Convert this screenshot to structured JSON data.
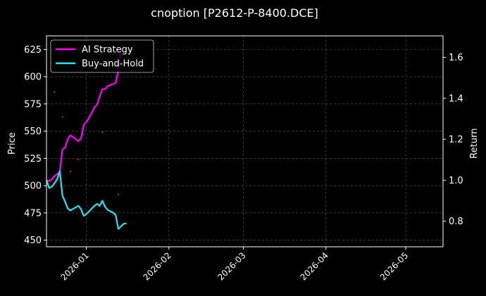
{
  "chart_data": {
    "type": "line",
    "title": "cnoption [P2612-P-8400.DCE]",
    "xlabel": "",
    "ylabel": "Price",
    "y2label": "Return",
    "grid": true,
    "legend_position": "top-left",
    "x_range": [
      "2025-12-17",
      "2026-05-15"
    ],
    "ylim": [
      443.9,
      637.5
    ],
    "y2lim": [
      0.675,
      1.705
    ],
    "x_ticks": [
      "2026-01",
      "2026-02",
      "2026-03",
      "2026-04",
      "2026-05"
    ],
    "y_ticks": [
      450,
      475,
      500,
      525,
      550,
      575,
      600,
      625
    ],
    "y2_ticks": [
      0.8,
      1.0,
      1.2,
      1.4,
      1.6
    ],
    "series": [
      {
        "name": "AI Strategy",
        "axis": "right",
        "color": "#ff00ff",
        "points": [
          [
            "2025-12-17",
            1.0
          ],
          [
            "2025-12-18",
            0.995
          ],
          [
            "2025-12-19",
            1.005
          ],
          [
            "2025-12-20",
            1.02
          ],
          [
            "2025-12-22",
            1.04
          ],
          [
            "2025-12-23",
            1.15
          ],
          [
            "2025-12-24",
            1.16
          ],
          [
            "2025-12-25",
            1.2
          ],
          [
            "2025-12-26",
            1.22
          ],
          [
            "2025-12-27",
            1.21
          ],
          [
            "2025-12-28",
            1.2
          ],
          [
            "2025-12-29",
            1.19
          ],
          [
            "2025-12-30",
            1.205
          ],
          [
            "2025-12-31",
            1.27
          ],
          [
            "2026-01-01",
            1.285
          ],
          [
            "2026-01-02",
            1.305
          ],
          [
            "2026-01-03",
            1.33
          ],
          [
            "2026-01-04",
            1.355
          ],
          [
            "2026-01-05",
            1.37
          ],
          [
            "2026-01-06",
            1.41
          ],
          [
            "2026-01-07",
            1.445
          ],
          [
            "2026-01-08",
            1.445
          ],
          [
            "2026-01-09",
            1.46
          ],
          [
            "2026-01-10",
            1.465
          ],
          [
            "2026-01-12",
            1.475
          ],
          [
            "2026-01-13",
            1.535
          ],
          [
            "2026-01-14",
            1.64
          ],
          [
            "2026-01-15",
            1.65
          ]
        ]
      },
      {
        "name": "Buy-and-Hold",
        "axis": "right",
        "color": "#22e5ee",
        "points": [
          [
            "2025-12-17",
            1.0
          ],
          [
            "2025-12-18",
            0.962
          ],
          [
            "2025-12-19",
            0.968
          ],
          [
            "2025-12-20",
            0.985
          ],
          [
            "2025-12-21",
            1.005
          ],
          [
            "2025-12-22",
            1.045
          ],
          [
            "2025-12-23",
            0.925
          ],
          [
            "2025-12-24",
            0.895
          ],
          [
            "2025-12-25",
            0.862
          ],
          [
            "2025-12-26",
            0.852
          ],
          [
            "2025-12-27",
            0.86
          ],
          [
            "2025-12-28",
            0.868
          ],
          [
            "2025-12-29",
            0.875
          ],
          [
            "2025-12-30",
            0.858
          ],
          [
            "2025-12-31",
            0.826
          ],
          [
            "2026-01-01",
            0.835
          ],
          [
            "2026-01-02",
            0.848
          ],
          [
            "2026-01-03",
            0.862
          ],
          [
            "2026-01-04",
            0.875
          ],
          [
            "2026-01-05",
            0.885
          ],
          [
            "2026-01-06",
            0.875
          ],
          [
            "2026-01-07",
            0.9
          ],
          [
            "2026-01-08",
            0.87
          ],
          [
            "2026-01-09",
            0.855
          ],
          [
            "2026-01-10",
            0.848
          ],
          [
            "2026-01-11",
            0.842
          ],
          [
            "2026-01-12",
            0.83
          ],
          [
            "2026-01-13",
            0.762
          ],
          [
            "2026-01-14",
            0.775
          ],
          [
            "2026-01-15",
            0.787
          ],
          [
            "2026-01-16",
            0.79
          ]
        ]
      }
    ],
    "signal_markers": {
      "color": "#ff3355",
      "points": [
        [
          "2025-12-20",
          586
        ],
        [
          "2025-12-23",
          563
        ],
        [
          "2025-12-26",
          513
        ],
        [
          "2025-12-29",
          524
        ],
        [
          "2026-01-07",
          549
        ],
        [
          "2026-01-13",
          492
        ]
      ]
    }
  }
}
